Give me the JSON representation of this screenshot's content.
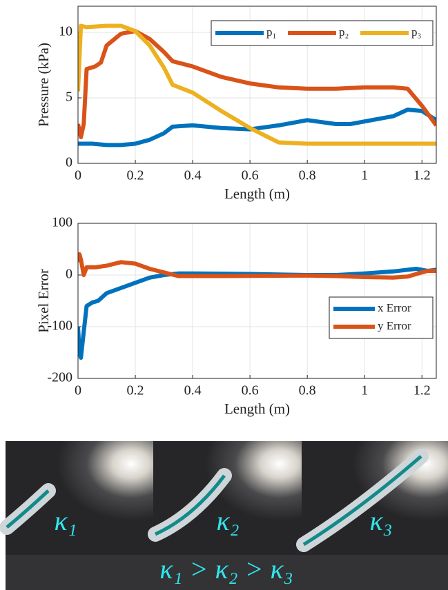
{
  "chart_data": [
    {
      "type": "line",
      "xlabel": "Length (m)",
      "ylabel": "Pressure (kPa)",
      "xlim": [
        0,
        1.25
      ],
      "ylim": [
        0,
        12
      ],
      "xticks": [
        0,
        0.2,
        0.4,
        0.6,
        0.8,
        1,
        1.2
      ],
      "yticks": [
        0,
        5,
        10
      ],
      "grid": true,
      "legend": "upper right",
      "legend_layout": "horizontal",
      "series": [
        {
          "name": "p₁",
          "color": "#0072bd",
          "x": [
            0,
            0.05,
            0.1,
            0.15,
            0.2,
            0.25,
            0.3,
            0.33,
            0.4,
            0.5,
            0.6,
            0.7,
            0.8,
            0.9,
            0.95,
            1.0,
            1.1,
            1.15,
            1.2,
            1.25
          ],
          "values": [
            1.5,
            1.5,
            1.4,
            1.4,
            1.5,
            1.8,
            2.3,
            2.8,
            2.9,
            2.7,
            2.6,
            2.9,
            3.3,
            3.0,
            3.0,
            3.2,
            3.6,
            4.1,
            4.0,
            3.3
          ]
        },
        {
          "name": "p₂",
          "color": "#d95319",
          "x": [
            0,
            0.01,
            0.02,
            0.03,
            0.06,
            0.08,
            0.1,
            0.15,
            0.2,
            0.25,
            0.3,
            0.33,
            0.4,
            0.5,
            0.6,
            0.7,
            0.8,
            0.9,
            1.0,
            1.1,
            1.15,
            1.2,
            1.25
          ],
          "values": [
            3.0,
            2.0,
            3.0,
            7.2,
            7.4,
            7.7,
            9.0,
            9.9,
            10.1,
            9.5,
            8.5,
            7.8,
            7.4,
            6.6,
            6.1,
            5.8,
            5.7,
            5.7,
            5.8,
            5.8,
            5.7,
            4.4,
            2.9
          ]
        },
        {
          "name": "p₃",
          "color": "#edb120",
          "x": [
            0,
            0.01,
            0.03,
            0.1,
            0.15,
            0.2,
            0.25,
            0.3,
            0.33,
            0.4,
            0.5,
            0.6,
            0.7,
            0.8,
            0.9,
            1.0,
            1.1,
            1.25
          ],
          "values": [
            5.5,
            10.5,
            10.4,
            10.5,
            10.5,
            10.1,
            9.0,
            7.3,
            6.0,
            5.4,
            4.0,
            2.7,
            1.6,
            1.5,
            1.5,
            1.5,
            1.5,
            1.5
          ]
        }
      ]
    },
    {
      "type": "line",
      "xlabel": "Length (m)",
      "ylabel": "Pixel Error",
      "xlim": [
        0,
        1.25
      ],
      "ylim": [
        -200,
        100
      ],
      "xticks": [
        0,
        0.2,
        0.4,
        0.6,
        0.8,
        1,
        1.2
      ],
      "yticks": [
        -200,
        -100,
        0,
        100
      ],
      "grid": true,
      "legend": "lower right",
      "legend_layout": "vertical",
      "series": [
        {
          "name": "x Error",
          "color": "#0072bd",
          "x": [
            0,
            0.005,
            0.01,
            0.02,
            0.03,
            0.05,
            0.07,
            0.1,
            0.15,
            0.2,
            0.25,
            0.3,
            0.35,
            0.4,
            0.6,
            0.8,
            0.9,
            1.0,
            1.1,
            1.18,
            1.22,
            1.25
          ],
          "values": [
            -100,
            -150,
            -160,
            -110,
            -60,
            -53,
            -50,
            -35,
            -25,
            -15,
            -5,
            0,
            3,
            3,
            2,
            0,
            0,
            3,
            7,
            12,
            8,
            10
          ]
        },
        {
          "name": "y Error",
          "color": "#d95319",
          "x": [
            0,
            0.005,
            0.01,
            0.02,
            0.03,
            0.06,
            0.1,
            0.15,
            0.2,
            0.25,
            0.3,
            0.35,
            0.5,
            0.8,
            0.9,
            1.0,
            1.1,
            1.15,
            1.2,
            1.22,
            1.25
          ],
          "values": [
            25,
            40,
            30,
            0,
            15,
            15,
            18,
            25,
            22,
            12,
            5,
            -2,
            -2,
            -1,
            -2,
            -4,
            -5,
            -3,
            5,
            8,
            8
          ]
        }
      ]
    }
  ],
  "photos": {
    "labels": [
      "κ₁",
      "κ₂",
      "κ₃"
    ],
    "caption": "κ₁ > κ₂ > κ₃"
  }
}
